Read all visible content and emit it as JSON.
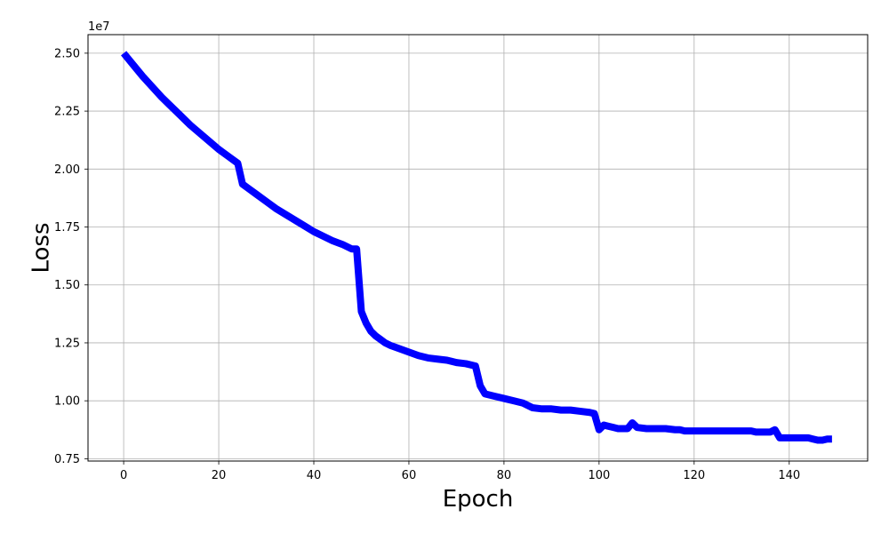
{
  "chart_data": {
    "type": "line",
    "title": "",
    "xlabel": "Epoch",
    "ylabel": "Loss",
    "y_offset_label": "1e7",
    "xlim": [
      -7.5,
      156.5
    ],
    "ylim": [
      7.4,
      25.8
    ],
    "x_ticks": [
      0,
      20,
      40,
      60,
      80,
      100,
      120,
      140
    ],
    "y_ticks": [
      7.5,
      10.0,
      12.5,
      15.0,
      17.5,
      20.0,
      22.5,
      25.0
    ],
    "x_tick_labels": [
      "0",
      "20",
      "40",
      "60",
      "80",
      "100",
      "120",
      "140"
    ],
    "y_tick_labels": [
      "0.75",
      "1.00",
      "1.25",
      "1.50",
      "1.75",
      "2.00",
      "2.25",
      "2.50"
    ],
    "grid": true,
    "line_color": "#0000ff",
    "series": [
      {
        "name": "",
        "x": [
          0,
          2,
          4,
          6,
          8,
          10,
          12,
          14,
          16,
          18,
          20,
          22,
          24,
          25,
          26,
          28,
          30,
          32,
          34,
          36,
          38,
          40,
          42,
          44,
          46,
          48,
          49,
          50,
          51,
          52,
          53,
          54,
          55,
          56,
          58,
          60,
          62,
          64,
          66,
          68,
          70,
          72,
          74,
          75,
          76,
          78,
          80,
          82,
          84,
          86,
          88,
          90,
          92,
          94,
          96,
          98,
          99,
          100,
          101,
          102,
          103,
          104,
          105,
          106,
          107,
          108,
          110,
          112,
          114,
          116,
          117,
          118,
          120,
          122,
          124,
          126,
          128,
          130,
          132,
          133,
          134,
          135,
          136,
          137,
          138,
          139,
          140,
          141,
          142,
          143,
          144,
          145,
          146,
          147,
          148,
          149
        ],
        "y": [
          25.0,
          24.5,
          24.0,
          23.55,
          23.1,
          22.7,
          22.3,
          21.9,
          21.55,
          21.2,
          20.85,
          20.55,
          20.25,
          19.35,
          19.2,
          18.9,
          18.6,
          18.3,
          18.05,
          17.8,
          17.55,
          17.3,
          17.1,
          16.9,
          16.75,
          16.55,
          16.55,
          13.85,
          13.35,
          13.0,
          12.8,
          12.65,
          12.5,
          12.4,
          12.25,
          12.1,
          11.95,
          11.85,
          11.8,
          11.75,
          11.65,
          11.6,
          11.5,
          10.65,
          10.3,
          10.2,
          10.1,
          10.0,
          9.9,
          9.7,
          9.65,
          9.65,
          9.6,
          9.6,
          9.55,
          9.5,
          9.45,
          8.75,
          8.95,
          8.9,
          8.85,
          8.8,
          8.8,
          8.8,
          9.05,
          8.85,
          8.8,
          8.8,
          8.8,
          8.75,
          8.75,
          8.7,
          8.7,
          8.7,
          8.7,
          8.7,
          8.7,
          8.7,
          8.7,
          8.65,
          8.65,
          8.65,
          8.65,
          8.75,
          8.4,
          8.4,
          8.4,
          8.4,
          8.4,
          8.4,
          8.4,
          8.35,
          8.3,
          8.3,
          8.35,
          8.35
        ]
      }
    ]
  }
}
